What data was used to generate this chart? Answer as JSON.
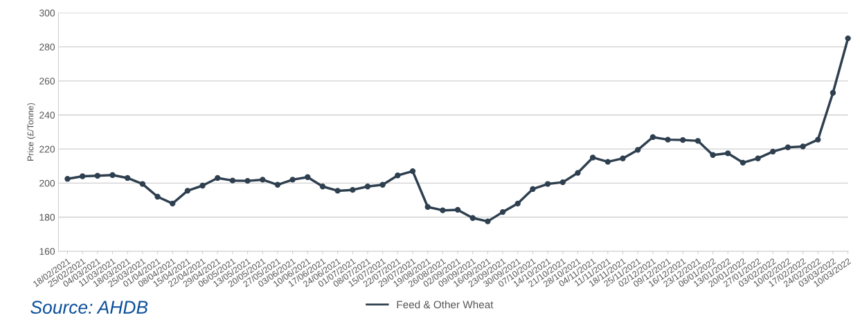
{
  "chart_data": {
    "type": "line",
    "ylabel": "Price (£/Tonne)",
    "categories": [
      "18/02/2021",
      "25/02/2021",
      "04/03/2021",
      "11/03/2021",
      "18/03/2021",
      "25/03/2021",
      "01/04/2021",
      "08/04/2021",
      "15/04/2021",
      "22/04/2021",
      "29/04/2021",
      "06/05/2021",
      "13/05/2021",
      "20/05/2021",
      "27/05/2021",
      "03/06/2021",
      "10/06/2021",
      "17/06/2021",
      "24/06/2021",
      "01/07/2021",
      "08/07/2021",
      "15/07/2021",
      "22/07/2021",
      "29/07/2021",
      "19/08/2021",
      "26/08/2021",
      "02/09/2021",
      "09/09/2021",
      "16/09/2021",
      "23/09/2021",
      "30/09/2021",
      "07/10/2021",
      "14/10/2021",
      "21/10/2021",
      "28/10/2021",
      "04/11/2021",
      "11/11/2021",
      "18/11/2021",
      "25/11/2021",
      "02/12/2021",
      "09/12/2021",
      "16/12/2021",
      "23/12/2021",
      "06/01/2022",
      "13/01/2022",
      "20/01/2022",
      "27/01/2022",
      "03/02/2022",
      "10/02/2022",
      "17/02/2022",
      "24/02/2022",
      "03/03/2022",
      "10/03/2022"
    ],
    "series": [
      {
        "name": "Feed & Other Wheat",
        "color": "#2e3f4f",
        "values": [
          202.5,
          204,
          204.3,
          204.7,
          203,
          199.5,
          192,
          188,
          195.5,
          198.5,
          203,
          201.5,
          201.3,
          202,
          199,
          202,
          203.5,
          198,
          195.5,
          196,
          198,
          199,
          204.5,
          207,
          186,
          184,
          184.3,
          179.5,
          177.5,
          183,
          188,
          196.5,
          199.5,
          200.5,
          206,
          215,
          212.5,
          214.5,
          219.5,
          227,
          225.5,
          225.3,
          224.8,
          216.5,
          217.5,
          212,
          214.5,
          218.5,
          221,
          221.5,
          225.5,
          253,
          285
        ]
      }
    ],
    "ylim": [
      160,
      300
    ],
    "yticks": [
      160,
      180,
      200,
      220,
      240,
      260,
      280,
      300
    ],
    "grid": "y",
    "legend": "bottom",
    "marker": "circle",
    "line_style": "solid",
    "annotations": [
      "Source: AHDB"
    ]
  }
}
